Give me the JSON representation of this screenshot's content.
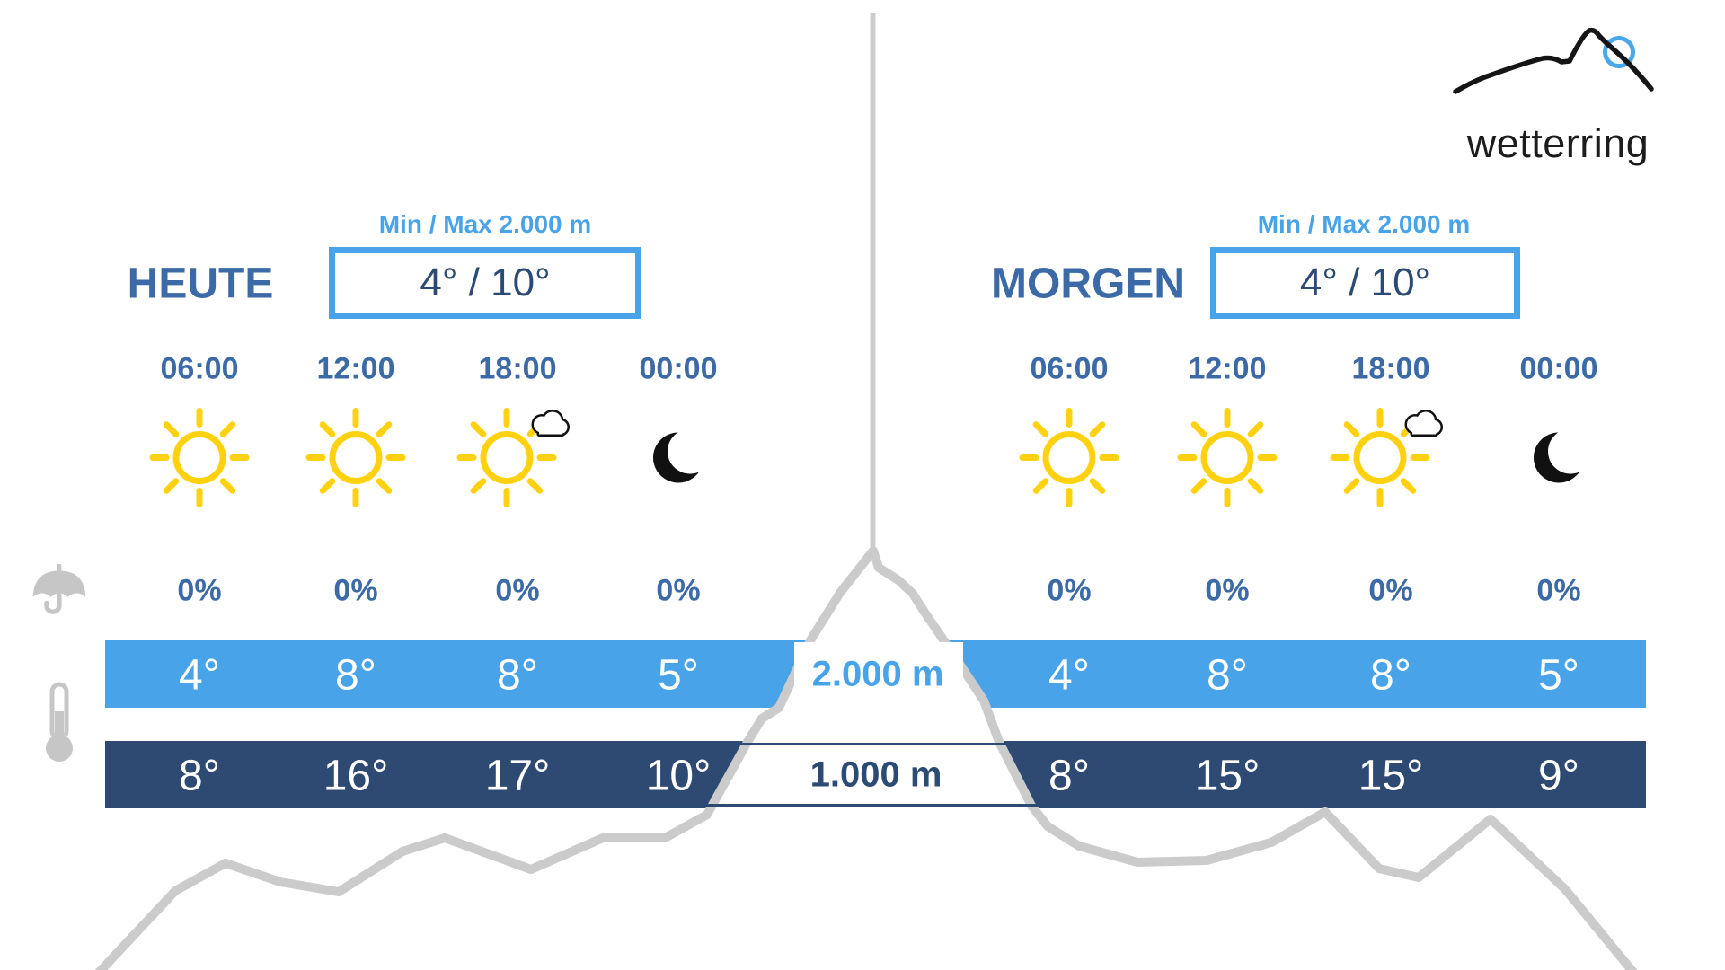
{
  "logo": {
    "brand": "wetterring",
    "icon": "mountain-sun-logo"
  },
  "days": [
    {
      "label": "HEUTE",
      "minmax_label": "Min / Max 2.000 m",
      "minmax_value": "4° / 10°",
      "columns": [
        {
          "time": "06:00",
          "icon": "sun",
          "pop": "0%",
          "temp_2000m": "4°",
          "temp_1000m": "8°"
        },
        {
          "time": "12:00",
          "icon": "sun",
          "pop": "0%",
          "temp_2000m": "8°",
          "temp_1000m": "16°"
        },
        {
          "time": "18:00",
          "icon": "sun-cloud",
          "pop": "0%",
          "temp_2000m": "8°",
          "temp_1000m": "17°"
        },
        {
          "time": "00:00",
          "icon": "moon",
          "pop": "0%",
          "temp_2000m": "5°",
          "temp_1000m": "10°"
        }
      ]
    },
    {
      "label": "MORGEN",
      "minmax_label": "Min / Max 2.000 m",
      "minmax_value": "4° / 10°",
      "columns": [
        {
          "time": "06:00",
          "icon": "sun",
          "pop": "0%",
          "temp_2000m": "4°",
          "temp_1000m": "8°"
        },
        {
          "time": "12:00",
          "icon": "sun",
          "pop": "0%",
          "temp_2000m": "8°",
          "temp_1000m": "15°"
        },
        {
          "time": "18:00",
          "icon": "sun-cloud",
          "pop": "0%",
          "temp_2000m": "8°",
          "temp_1000m": "15°"
        },
        {
          "time": "00:00",
          "icon": "moon",
          "pop": "0%",
          "temp_2000m": "5°",
          "temp_1000m": "9°"
        }
      ]
    }
  ],
  "altitude_bands": [
    {
      "label": "2.000 m"
    },
    {
      "label": "1.000 m"
    }
  ],
  "legend": {
    "precipitation_icon": "umbrella",
    "temperature_icon": "thermometer"
  },
  "colors": {
    "steel_blue_text": "#3c6aa6",
    "light_blue_accent": "#49a3e9",
    "navy_text": "#2b4a74",
    "band_dark_blue": "#2e4a73",
    "mountain_gray": "#cbcbcb",
    "legend_icon_gray": "#c6c6c6",
    "sun_yellow": "#ffd10e"
  }
}
